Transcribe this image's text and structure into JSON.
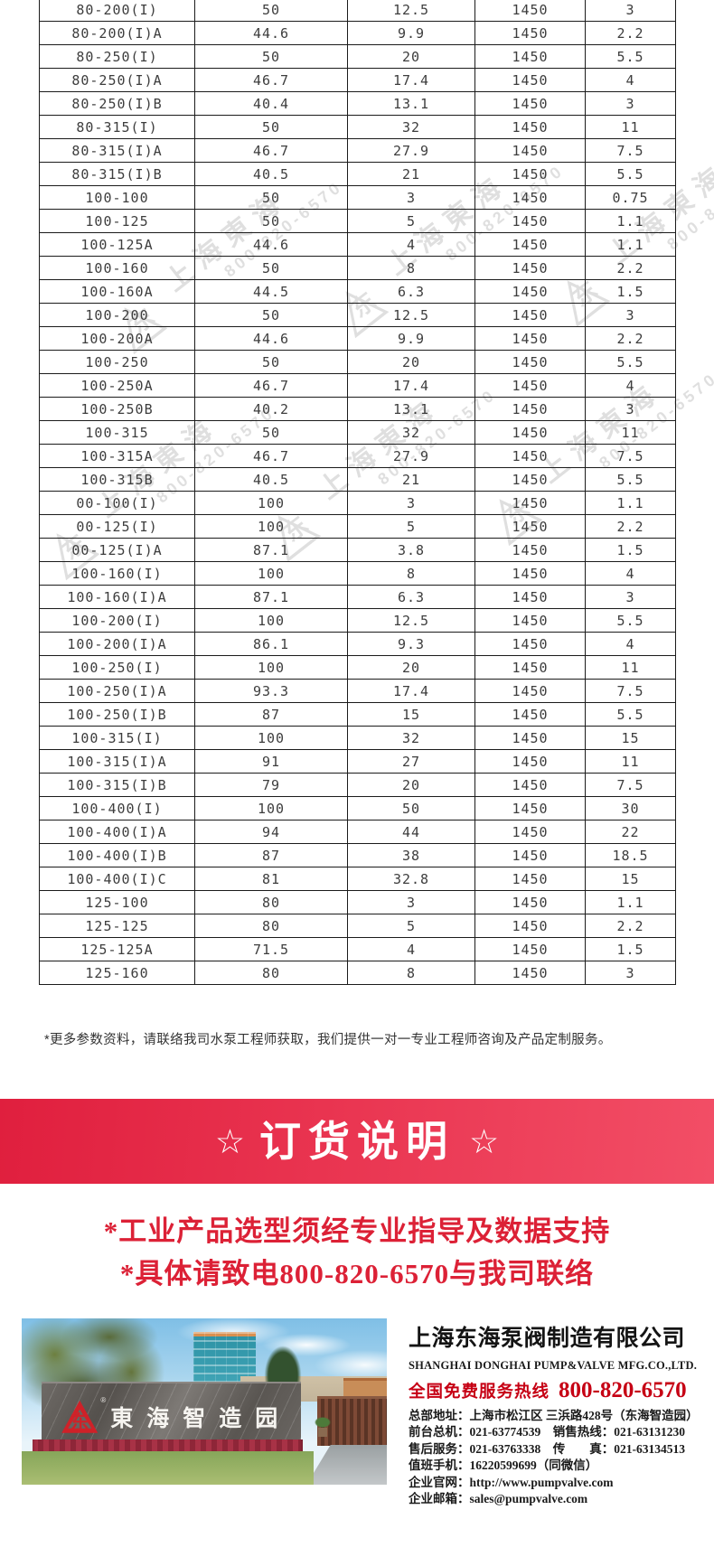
{
  "table": {
    "rows": [
      [
        "80-200(I)",
        "50",
        "12.5",
        "1450",
        "3"
      ],
      [
        "80-200(I)A",
        "44.6",
        "9.9",
        "1450",
        "2.2"
      ],
      [
        "80-250(I)",
        "50",
        "20",
        "1450",
        "5.5"
      ],
      [
        "80-250(I)A",
        "46.7",
        "17.4",
        "1450",
        "4"
      ],
      [
        "80-250(I)B",
        "40.4",
        "13.1",
        "1450",
        "3"
      ],
      [
        "80-315(I)",
        "50",
        "32",
        "1450",
        "11"
      ],
      [
        "80-315(I)A",
        "46.7",
        "27.9",
        "1450",
        "7.5"
      ],
      [
        "80-315(I)B",
        "40.5",
        "21",
        "1450",
        "5.5"
      ],
      [
        "100-100",
        "50",
        "3",
        "1450",
        "0.75"
      ],
      [
        "100-125",
        "50",
        "5",
        "1450",
        "1.1"
      ],
      [
        "100-125A",
        "44.6",
        "4",
        "1450",
        "1.1"
      ],
      [
        "100-160",
        "50",
        "8",
        "1450",
        "2.2"
      ],
      [
        "100-160A",
        "44.5",
        "6.3",
        "1450",
        "1.5"
      ],
      [
        "100-200",
        "50",
        "12.5",
        "1450",
        "3"
      ],
      [
        "100-200A",
        "44.6",
        "9.9",
        "1450",
        "2.2"
      ],
      [
        "100-250",
        "50",
        "20",
        "1450",
        "5.5"
      ],
      [
        "100-250A",
        "46.7",
        "17.4",
        "1450",
        "4"
      ],
      [
        "100-250B",
        "40.2",
        "13.1",
        "1450",
        "3"
      ],
      [
        "100-315",
        "50",
        "32",
        "1450",
        "11"
      ],
      [
        "100-315A",
        "46.7",
        "27.9",
        "1450",
        "7.5"
      ],
      [
        "100-315B",
        "40.5",
        "21",
        "1450",
        "5.5"
      ],
      [
        "00-100(I)",
        "100",
        "3",
        "1450",
        "1.1"
      ],
      [
        "00-125(I)",
        "100",
        "5",
        "1450",
        "2.2"
      ],
      [
        "00-125(I)A",
        "87.1",
        "3.8",
        "1450",
        "1.5"
      ],
      [
        "100-160(I)",
        "100",
        "8",
        "1450",
        "4"
      ],
      [
        "100-160(I)A",
        "87.1",
        "6.3",
        "1450",
        "3"
      ],
      [
        "100-200(I)",
        "100",
        "12.5",
        "1450",
        "5.5"
      ],
      [
        "100-200(I)A",
        "86.1",
        "9.3",
        "1450",
        "4"
      ],
      [
        "100-250(I)",
        "100",
        "20",
        "1450",
        "11"
      ],
      [
        "100-250(I)A",
        "93.3",
        "17.4",
        "1450",
        "7.5"
      ],
      [
        "100-250(I)B",
        "87",
        "15",
        "1450",
        "5.5"
      ],
      [
        "100-315(I)",
        "100",
        "32",
        "1450",
        "15"
      ],
      [
        "100-315(I)A",
        "91",
        "27",
        "1450",
        "11"
      ],
      [
        "100-315(I)B",
        "79",
        "20",
        "1450",
        "7.5"
      ],
      [
        "100-400(I)",
        "100",
        "50",
        "1450",
        "30"
      ],
      [
        "100-400(I)A",
        "94",
        "44",
        "1450",
        "22"
      ],
      [
        "100-400(I)B",
        "87",
        "38",
        "1450",
        "18.5"
      ],
      [
        "100-400(I)C",
        "81",
        "32.8",
        "1450",
        "15"
      ],
      [
        "125-100",
        "80",
        "3",
        "1450",
        "1.1"
      ],
      [
        "125-125",
        "80",
        "5",
        "1450",
        "2.2"
      ],
      [
        "125-125A",
        "71.5",
        "4",
        "1450",
        "1.5"
      ],
      [
        "125-160",
        "80",
        "8",
        "1450",
        "3"
      ]
    ]
  },
  "note": "*更多参数资料，请联络我司水泵工程师获取，我们提供一对一专业工程师咨询及产品定制服务。",
  "banner": {
    "star": "☆",
    "title": "订货说明"
  },
  "slogans": [
    "*工业产品选型须经专业指导及数据支持",
    "*具体请致电800-820-6570与我司联络"
  ],
  "watermark": {
    "logo_triangle": "△",
    "logo_char": "东",
    "line1": "上海東海",
    "line2": "800-820-6570"
  },
  "company": {
    "name_cn": "上海东海泵阀制造有限公司",
    "name_en": "SHANGHAI DONGHAI PUMP&VALVE MFG.CO.,LTD.",
    "hotline_label": "全国免费服务热线",
    "hotline_number": "800-820-6570",
    "contacts": [
      "总部地址：上海市松江区 三浜路428号（东海智造园）",
      "前台总机：021-63774539　销售热线：021-63131230",
      "售后服务：021-63763338　传　　真：021-63134513",
      "值班手机：16220599699（同微信）",
      "企业官网：http://www.pumpvalve.com",
      "企业邮箱：sales@pumpvalve.com"
    ],
    "photo": {
      "sign_text": "東海智造园",
      "logo_char": "东",
      "reg_mark": "®"
    }
  }
}
